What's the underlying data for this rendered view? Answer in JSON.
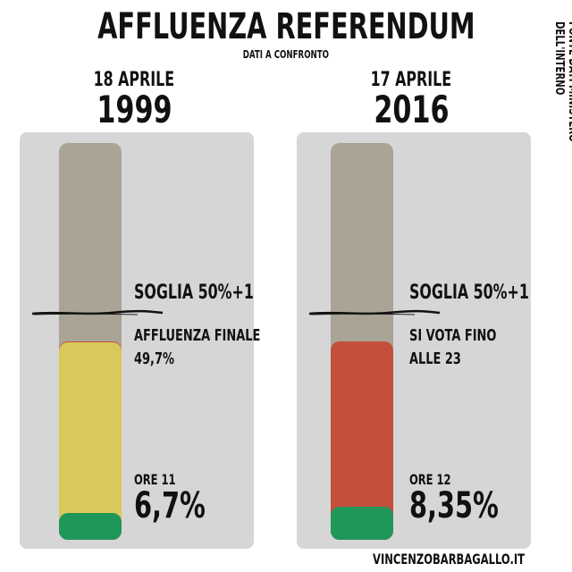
{
  "title": "AFFLUENZA REFERENDUM",
  "subtitle": "DATI A CONFRONTO",
  "source": "FONTE DATI MINISTERO DELL'INTERNO",
  "credit": "VINCENZOBARBAGALLO.IT",
  "colors": {
    "panel": "#d6d6d6",
    "tube_empty": "#aaa497",
    "red": "#c44f3c",
    "yellow": "#d8c95a",
    "green": "#20975a"
  },
  "chart_data": [
    {
      "type": "bar",
      "date": "18 APRILE",
      "year": "1999",
      "ylim": [
        0,
        100
      ],
      "threshold_label": "SOGLIA 50%+1",
      "threshold": 50,
      "final_label": "AFFLUENZA FINALE",
      "final_value_label": "49,7%",
      "final_value": 49.7,
      "partial_label": "ORE 11",
      "partial_value_label": "6,7%",
      "partial_value": 6.7
    },
    {
      "type": "bar",
      "date": "17 APRILE",
      "year": "2016",
      "ylim": [
        0,
        100
      ],
      "threshold_label": "SOGLIA 50%+1",
      "threshold": 50,
      "note_line1": "SI VOTA FINO",
      "note_line2": "ALLE 23",
      "partial_label": "ORE 12",
      "partial_value_label": "8,35%",
      "partial_value": 8.35
    }
  ]
}
